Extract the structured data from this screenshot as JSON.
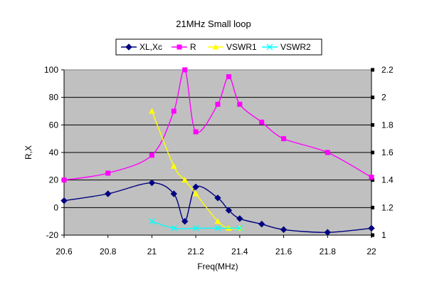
{
  "chart_data": {
    "type": "line",
    "title": "21MHz Small loop",
    "xlabel": "Freq(MHz)",
    "ylabel": "R,X",
    "xlim": [
      20.6,
      22
    ],
    "xticks": [
      "20.6",
      "20.8",
      "21",
      "21.2",
      "21.4",
      "21.6",
      "21.8",
      "22"
    ],
    "ylim": [
      -20,
      100
    ],
    "yticks": [
      "-20",
      "0",
      "20",
      "40",
      "60",
      "80",
      "100"
    ],
    "y2lim": [
      1,
      2.2
    ],
    "y2ticks": [
      "1",
      "1.2",
      "1.4",
      "1.6",
      "1.8",
      "2",
      "2.2"
    ],
    "grid": true,
    "legend": "top",
    "plot_background": "#c0c0c0",
    "series": [
      {
        "name": "XL,Xc",
        "axis": "left",
        "color": "#000080",
        "marker": "diamond",
        "x": [
          20.6,
          20.8,
          21.0,
          21.1,
          21.15,
          21.2,
          21.3,
          21.35,
          21.4,
          21.5,
          21.6,
          21.8,
          22.0
        ],
        "y": [
          5,
          10,
          18,
          10,
          -10,
          15,
          7,
          -2,
          -8,
          -12,
          -16,
          -18,
          -15
        ]
      },
      {
        "name": "R",
        "axis": "left",
        "color": "#ff00ff",
        "marker": "square",
        "x": [
          20.6,
          20.8,
          21.0,
          21.1,
          21.15,
          21.2,
          21.3,
          21.35,
          21.4,
          21.5,
          21.6,
          21.8,
          22.0
        ],
        "y": [
          20,
          25,
          38,
          70,
          100,
          55,
          75,
          95,
          75,
          62,
          50,
          40,
          22
        ]
      },
      {
        "name": "VSWR1",
        "axis": "right",
        "color": "#ffff00",
        "marker": "triangle",
        "x": [
          21.0,
          21.1,
          21.15,
          21.2,
          21.3,
          21.35,
          21.4
        ],
        "y": [
          1.9,
          1.5,
          1.4,
          1.3,
          1.1,
          1.05,
          1.05
        ]
      },
      {
        "name": "VSWR2",
        "axis": "right",
        "color": "#00ffff",
        "marker": "cross",
        "x": [
          21.0,
          21.1,
          21.2,
          21.3,
          21.4
        ],
        "y": [
          1.1,
          1.05,
          1.05,
          1.05,
          1.05
        ]
      }
    ]
  }
}
